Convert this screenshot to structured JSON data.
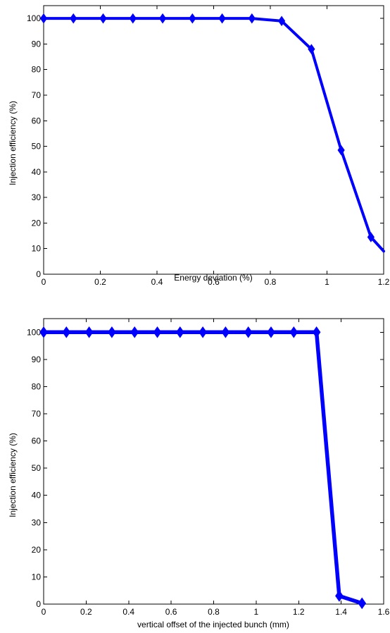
{
  "chart_data": [
    {
      "type": "line",
      "title": "",
      "xlabel": "Energy deviation (%)",
      "ylabel": "Injection efficiency (%)",
      "xlim": [
        0,
        1.2
      ],
      "ylim": [
        0,
        105
      ],
      "xticks": [
        0,
        0.2,
        0.4,
        0.6,
        0.8,
        1,
        1.2
      ],
      "xtick_labels": [
        "0",
        "0.2",
        "0.4",
        "0.6",
        "0.8",
        "1",
        "1.2"
      ],
      "yticks": [
        0,
        10,
        20,
        30,
        40,
        50,
        60,
        70,
        80,
        90,
        100
      ],
      "ytick_labels": [
        "0",
        "10",
        "20",
        "30",
        "40",
        "50",
        "60",
        "70",
        "80",
        "90",
        "100"
      ],
      "grid": false,
      "series": [
        {
          "color": "#0000ff",
          "marker": "diamond",
          "x": [
            0,
            0.105,
            0.21,
            0.315,
            0.42,
            0.525,
            0.63,
            0.735,
            0.84,
            0.945,
            1.05,
            1.155,
            1.2
          ],
          "y": [
            100,
            100,
            100,
            100,
            100,
            100,
            100,
            100,
            99,
            88,
            48.5,
            14.5,
            9
          ],
          "marker_mask": [
            1,
            1,
            1,
            1,
            1,
            1,
            1,
            1,
            1,
            1,
            1,
            1,
            0
          ]
        }
      ]
    },
    {
      "type": "line",
      "title": "",
      "xlabel": "vertical offset of the injected bunch (mm)",
      "ylabel": "Injection efficiency (%)",
      "xlim": [
        0,
        1.6
      ],
      "ylim": [
        0,
        105
      ],
      "xticks": [
        0,
        0.2,
        0.4,
        0.6,
        0.8,
        1,
        1.2,
        1.4,
        1.6
      ],
      "xtick_labels": [
        "0",
        "0.2",
        "0.4",
        "0.6",
        "0.8",
        "1",
        "1.2",
        "1.4",
        "1.6"
      ],
      "yticks": [
        0,
        10,
        20,
        30,
        40,
        50,
        60,
        70,
        80,
        90,
        100
      ],
      "ytick_labels": [
        "0",
        "10",
        "20",
        "30",
        "40",
        "50",
        "60",
        "70",
        "80",
        "90",
        "100"
      ],
      "grid": false,
      "series": [
        {
          "color": "#0000ff",
          "marker": "diamond",
          "x": [
            0,
            0.107,
            0.214,
            0.321,
            0.428,
            0.535,
            0.642,
            0.749,
            0.856,
            0.963,
            1.07,
            1.177,
            1.284,
            1.391,
            1.498
          ],
          "y": [
            100,
            100,
            100,
            100,
            100,
            100,
            100,
            100,
            100,
            100,
            100,
            100,
            100,
            3,
            0.3
          ],
          "marker_mask": [
            1,
            1,
            1,
            1,
            1,
            1,
            1,
            1,
            1,
            1,
            1,
            1,
            1,
            1,
            1
          ]
        }
      ]
    }
  ]
}
